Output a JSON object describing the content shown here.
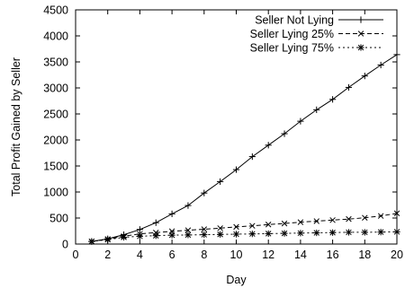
{
  "chart_data": {
    "type": "line",
    "title": "",
    "xlabel": "Day",
    "ylabel": "Total Profit Gained by Seller",
    "xlim": [
      0,
      20
    ],
    "ylim": [
      0,
      4500
    ],
    "xticks": [
      0,
      2,
      4,
      6,
      8,
      10,
      12,
      14,
      16,
      18,
      20
    ],
    "yticks": [
      0,
      500,
      1000,
      1500,
      2000,
      2500,
      3000,
      3500,
      4000,
      4500
    ],
    "grid": false,
    "legend_position": "top-right",
    "x": [
      1,
      2,
      3,
      4,
      5,
      6,
      7,
      8,
      9,
      10,
      11,
      12,
      13,
      14,
      15,
      16,
      17,
      18,
      19,
      20
    ],
    "series": [
      {
        "name": "Seller Not Lying",
        "marker": "+",
        "line": "solid",
        "values": [
          50,
          100,
          180,
          280,
          410,
          580,
          740,
          980,
          1200,
          1430,
          1680,
          1900,
          2120,
          2360,
          2580,
          2780,
          3010,
          3230,
          3440,
          3640
        ]
      },
      {
        "name": "Seller Lying 25%",
        "marker": "x",
        "line": "dashed",
        "values": [
          50,
          95,
          150,
          195,
          220,
          245,
          265,
          285,
          305,
          330,
          350,
          375,
          395,
          420,
          440,
          460,
          480,
          505,
          540,
          590
        ]
      },
      {
        "name": "Seller Lying 75%",
        "marker": "*",
        "line": "dotted",
        "values": [
          50,
          85,
          130,
          150,
          160,
          170,
          175,
          180,
          185,
          190,
          195,
          200,
          205,
          210,
          215,
          220,
          225,
          225,
          230,
          235
        ]
      }
    ]
  }
}
